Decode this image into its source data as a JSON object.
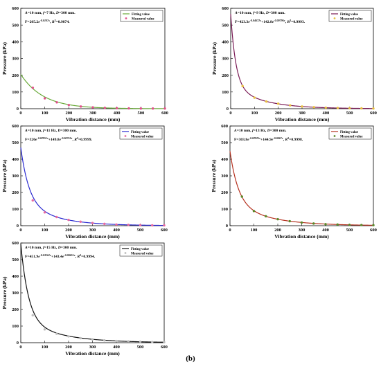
{
  "figure": {
    "panel_label": "(b)"
  },
  "chart_data": [
    {
      "type": "line",
      "xlabel": "Vibration distance (mm)",
      "ylabel": "Pressure (kPa)",
      "xlim": [
        0,
        600
      ],
      "ylim": [
        0,
        600
      ],
      "xticks": [
        "0",
        "100",
        "200",
        "300",
        "400",
        "500",
        "600"
      ],
      "yticks": [
        "0",
        "100",
        "200",
        "300",
        "400",
        "500",
        "600"
      ],
      "annotation_conditions": "A=10 mm, f=7 Hz, D=300 mm.",
      "annotation_equation": "F=205.2e-0.0107x, R2=0.9874.",
      "legend_position": "top-right",
      "grid": false,
      "fit_model": {
        "a1": 205.2,
        "b1": 0.0107,
        "a2": 0,
        "b2": 0
      },
      "series": [
        {
          "name": "Fitting value",
          "kind": "line",
          "color": "#6aaa3a",
          "x": [
            0,
            600
          ],
          "values": [
            205.2,
            0.3
          ]
        },
        {
          "name": "Measured value",
          "kind": "marker",
          "color": "#e0508a",
          "x": [
            50,
            100,
            150,
            200,
            250,
            300,
            350,
            400,
            450,
            500,
            550,
            600
          ],
          "values": [
            125,
            62,
            38,
            22,
            13,
            8,
            5,
            3,
            2,
            1,
            1,
            1
          ]
        }
      ]
    },
    {
      "type": "line",
      "xlabel": "Vibration distance (mm)",
      "ylabel": "Pressure (kPa)",
      "xlim": [
        0,
        600
      ],
      "ylim": [
        0,
        600
      ],
      "xticks": [
        "0",
        "100",
        "200",
        "300",
        "400",
        "500",
        "600"
      ],
      "yticks": [
        "0",
        "100",
        "200",
        "300",
        "400",
        "500",
        "600"
      ],
      "annotation_conditions": "A=10 mm, f=9 Hz, D=300 mm.",
      "annotation_equation": "F=423.3e-0.04672x+142.8e-0.00796x, R2=0.9993.",
      "legend_position": "top-right",
      "grid": false,
      "fit_model": {
        "a1": 423.3,
        "b1": 0.04672,
        "a2": 142.8,
        "b2": 0.00796
      },
      "series": [
        {
          "name": "Fitting value",
          "kind": "line",
          "color": "#7a1a55",
          "x": [
            0,
            600
          ],
          "values": [
            566.1,
            1.2
          ]
        },
        {
          "name": "Measured value",
          "kind": "marker",
          "color": "#e8c040",
          "x": [
            50,
            100,
            150,
            200,
            250,
            300,
            350,
            400,
            450,
            500,
            550,
            600
          ],
          "values": [
            135,
            66,
            43,
            30,
            20,
            13,
            9,
            6,
            4,
            3,
            2,
            1
          ]
        }
      ]
    },
    {
      "type": "line",
      "xlabel": "Vibration distance (mm)",
      "ylabel": "Pressure (kPa)",
      "xlim": [
        0,
        600
      ],
      "ylim": [
        0,
        600
      ],
      "xticks": [
        "0",
        "100",
        "200",
        "300",
        "400",
        "500",
        "600"
      ],
      "yticks": [
        "0",
        "100",
        "200",
        "300",
        "400",
        "500",
        "600"
      ],
      "annotation_conditions": "A=10 mm, f=11 Hz, D=300 mm.",
      "annotation_equation": "F=320e-0.02951x+149.8e-0.00752x, R2=0.9999.",
      "legend_position": "top-right",
      "grid": false,
      "fit_model": {
        "a1": 320,
        "b1": 0.02951,
        "a2": 149.8,
        "b2": 0.00752
      },
      "series": [
        {
          "name": "Fitting value",
          "kind": "line",
          "color": "#2a2ad0",
          "x": [
            0,
            600
          ],
          "values": [
            469.8,
            1.6
          ]
        },
        {
          "name": "Measured value",
          "kind": "marker",
          "color": "#e86aa0",
          "x": [
            50,
            100,
            150,
            200,
            250,
            300,
            350,
            400,
            450,
            500,
            550,
            600
          ],
          "values": [
            152,
            80,
            52,
            35,
            24,
            16,
            11,
            7,
            5,
            3,
            2,
            2
          ]
        }
      ]
    },
    {
      "type": "line",
      "xlabel": "Vibration distance (mm)",
      "ylabel": "Pressure (kPa)",
      "xlim": [
        0,
        600
      ],
      "ylim": [
        0,
        600
      ],
      "xticks": [
        "0",
        "100",
        "200",
        "300",
        "400",
        "500",
        "600"
      ],
      "yticks": [
        "0",
        "100",
        "200",
        "300",
        "400",
        "500",
        "600"
      ],
      "annotation_conditions": "A=10 mm, f=13 Hz, D=300 mm.",
      "annotation_equation": "F=303.8e-0.02925x+144.9e-0.0067x, R2=0.9998.",
      "legend_position": "top-right",
      "grid": false,
      "fit_model": {
        "a1": 303.8,
        "b1": 0.02925,
        "a2": 144.9,
        "b2": 0.0067
      },
      "series": [
        {
          "name": "Fitting value",
          "kind": "line",
          "color": "#b5311f",
          "x": [
            0,
            600
          ],
          "values": [
            448.7,
            2.6
          ]
        },
        {
          "name": "Measured value",
          "kind": "marker",
          "color": "#5a8a2a",
          "x": [
            50,
            100,
            150,
            200,
            250,
            300,
            350,
            400,
            450,
            500,
            550,
            600
          ],
          "values": [
            175,
            88,
            57,
            39,
            27,
            19,
            13,
            9,
            7,
            5,
            4,
            3
          ]
        }
      ]
    },
    {
      "type": "line",
      "xlabel": "Vibration distance (mm)",
      "ylabel": "Pressure (kPa)",
      "xlim": [
        0,
        600
      ],
      "ylim": [
        0,
        600
      ],
      "xticks": [
        "0",
        "100",
        "200",
        "300",
        "400",
        "500",
        "600"
      ],
      "yticks": [
        "0",
        "100",
        "200",
        "300",
        "400",
        "500",
        "600"
      ],
      "annotation_conditions": "A=10 mm, f=15 Hz, D=300 mm.",
      "annotation_equation": "F=451.9e-0.03161x+143.4e-0.00651x, R2=0.9994.",
      "legend_position": "top-right",
      "grid": false,
      "fit_model": {
        "a1": 451.9,
        "b1": 0.03161,
        "a2": 143.4,
        "b2": 0.00651
      },
      "series": [
        {
          "name": "Fitting value",
          "kind": "line",
          "color": "#111111",
          "x": [
            0,
            600
          ],
          "values": [
            595.3,
            2.9
          ]
        },
        {
          "name": "Measured value",
          "kind": "marker",
          "color": "#bdbdbd",
          "x": [
            50,
            100,
            150,
            200,
            250,
            300,
            350,
            400,
            450,
            500,
            550,
            600
          ],
          "values": [
            165,
            80,
            54,
            38,
            27,
            20,
            14,
            10,
            8,
            6,
            4,
            3
          ]
        }
      ]
    }
  ]
}
